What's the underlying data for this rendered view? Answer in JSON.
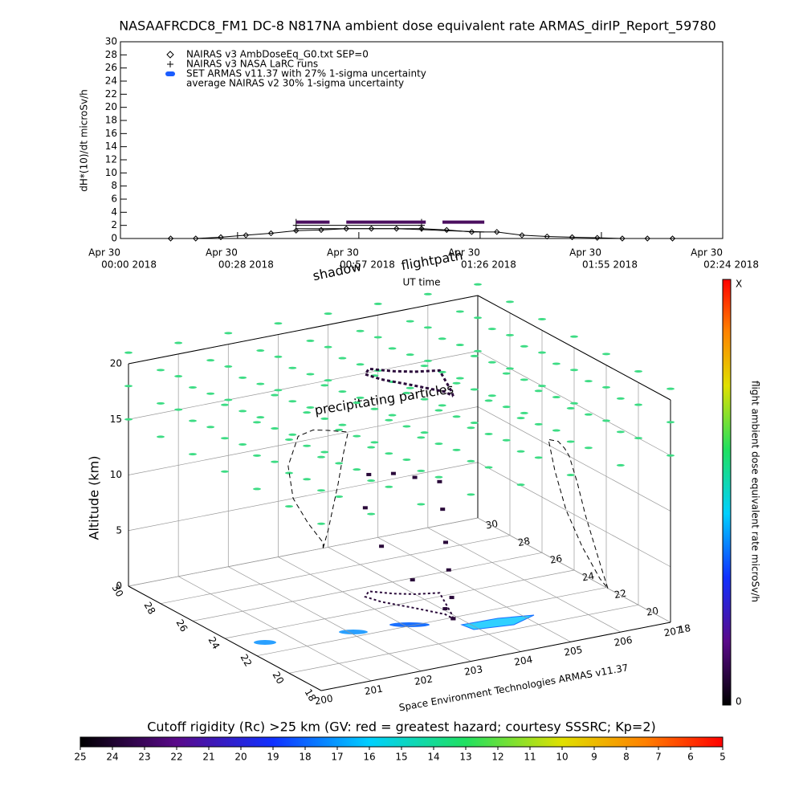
{
  "chart_data": [
    {
      "type": "line",
      "title": "NASAAFRCDC8_FM1 DC-8   N817NA ambient dose equivalent rate ARMAS_dirIP_Report_59780",
      "ylabel": "dH*(10)/dt microSv/h",
      "xlabel": "UT time",
      "ylim": [
        0,
        30
      ],
      "yticks": [
        0,
        2,
        4,
        6,
        8,
        10,
        12,
        14,
        16,
        18,
        20,
        22,
        24,
        26,
        28,
        30
      ],
      "xlim": [
        "2018-04-30T00:00",
        "2018-04-30T02:24"
      ],
      "xticks": [
        {
          "value": "2018-04-30T00:00",
          "label": [
            "Apr 30",
            "00:00 2018"
          ]
        },
        {
          "value": "2018-04-30T00:28",
          "label": [
            "Apr 30",
            "00:28 2018"
          ]
        },
        {
          "value": "2018-04-30T00:57",
          "label": [
            "Apr 30",
            "00:57 2018"
          ]
        },
        {
          "value": "2018-04-30T01:26",
          "label": [
            "Apr 30",
            "01:26 2018"
          ]
        },
        {
          "value": "2018-04-30T01:55",
          "label": [
            "Apr 30",
            "01:55 2018"
          ]
        },
        {
          "value": "2018-04-30T02:24",
          "label": [
            "Apr 30",
            "02:24 2018"
          ]
        }
      ],
      "series": [
        {
          "name": "NAIRAS v3 AmbDoseEq_G0.txt SEP=0",
          "marker": "diamond",
          "color": "#000000",
          "x": [
            "2018-04-30T00:12",
            "2018-04-30T00:18",
            "2018-04-30T00:24",
            "2018-04-30T00:30",
            "2018-04-30T00:36",
            "2018-04-30T00:42",
            "2018-04-30T00:48",
            "2018-04-30T00:54",
            "2018-04-30T01:00",
            "2018-04-30T01:06",
            "2018-04-30T01:12",
            "2018-04-30T01:18",
            "2018-04-30T01:24",
            "2018-04-30T01:30",
            "2018-04-30T01:36",
            "2018-04-30T01:42",
            "2018-04-30T01:48",
            "2018-04-30T01:54",
            "2018-04-30T02:00",
            "2018-04-30T02:06",
            "2018-04-30T02:12"
          ],
          "values": [
            0,
            0,
            0.2,
            0.5,
            0.8,
            1.2,
            1.3,
            1.5,
            1.5,
            1.5,
            1.5,
            1.3,
            1.0,
            1.0,
            0.5,
            0.3,
            0.2,
            0.1,
            0,
            0,
            0
          ]
        },
        {
          "name": "NAIRAS v3 NASA LaRC runs",
          "marker": "plus",
          "color": "#000000",
          "x": [
            "2018-04-30T00:42",
            "2018-04-30T01:12"
          ],
          "values": [
            2,
            2
          ]
        },
        {
          "name": "SET ARMAS v11.37 with 27% 1-sigma uncertainty",
          "marker": "bar",
          "color": "#4b0f5f",
          "legend_color": "#1a5cff",
          "x": [
            "2018-04-30T00:42",
            "2018-04-30T00:46",
            "2018-04-30T00:50",
            "2018-04-30T00:52",
            "2018-04-30T00:54",
            "2018-04-30T00:58",
            "2018-04-30T01:02",
            "2018-04-30T01:06",
            "2018-04-30T01:10",
            "2018-04-30T01:13",
            "2018-04-30T01:15",
            "2018-04-30T01:17",
            "2018-04-30T01:20",
            "2018-04-30T01:23",
            "2018-04-30T01:27"
          ],
          "values": [
            2.5,
            2.5,
            2.5,
            null,
            2.5,
            2.5,
            2.5,
            2.5,
            2.5,
            2.5,
            null,
            2.5,
            2.5,
            2.5,
            2.5
          ]
        },
        {
          "name": "average NAIRAS v2 30% 1-sigma uncertainty",
          "marker": "none",
          "color": "#000000",
          "x": [
            "2018-04-30T00:42",
            "2018-04-30T00:54",
            "2018-04-30T01:06",
            "2018-04-30T01:18",
            "2018-04-30T01:27"
          ],
          "values": [
            1.5,
            1.5,
            1.5,
            1.2,
            1.0
          ]
        }
      ]
    },
    {
      "type": "scatter3d",
      "zlabel": "Altitude (km)",
      "xlim": [
        200,
        207
      ],
      "xticks": [
        200,
        201,
        202,
        203,
        204,
        205,
        206,
        207
      ],
      "ylim": [
        18,
        30
      ],
      "yticks": [
        18,
        20,
        22,
        24,
        26,
        28,
        30
      ],
      "zlim": [
        0,
        20
      ],
      "zticks": [
        0,
        5,
        10,
        15,
        20
      ],
      "annotations": {
        "shadow": "shadow",
        "flightpath": "flightpath",
        "particles": "precipitating particles",
        "credit": "Space Environment Technologies ARMAS v11.37"
      },
      "flight": {
        "color": "#2a0a3a",
        "lon": [
          203.9,
          204.0,
          204.1,
          204.2,
          204.3,
          204.4,
          204.0,
          203.7,
          203.4,
          203.2,
          203.3,
          203.6,
          203.9,
          203.9
        ],
        "lat": [
          21.9,
          22.3,
          22.8,
          23.3,
          23.8,
          24.3,
          24.6,
          25.0,
          25.6,
          25.2,
          24.5,
          23.5,
          22.4,
          21.9
        ],
        "alt": [
          0,
          1.5,
          3.5,
          5.5,
          8,
          10,
          10.5,
          10.8,
          10.5,
          8,
          5,
          2.5,
          0.5,
          0
        ]
      },
      "particles": {
        "color": "#3ddc84",
        "altitudes": [
          15,
          18,
          21
        ]
      },
      "colorbar": {
        "label": "flight ambient dose equivalent rate microSv/h",
        "top": "X",
        "bottom": "0"
      },
      "rigidity": {
        "title": "Cutoff rigidity (Rc) >25 km (GV: red = greatest hazard; courtesy SSSRC; Kp=2)",
        "lim": [
          25,
          5
        ],
        "ticks": [
          25,
          24,
          23,
          22,
          21,
          20,
          19,
          18,
          17,
          16,
          15,
          14,
          13,
          12,
          11,
          10,
          9,
          8,
          7,
          6,
          5
        ]
      }
    }
  ]
}
